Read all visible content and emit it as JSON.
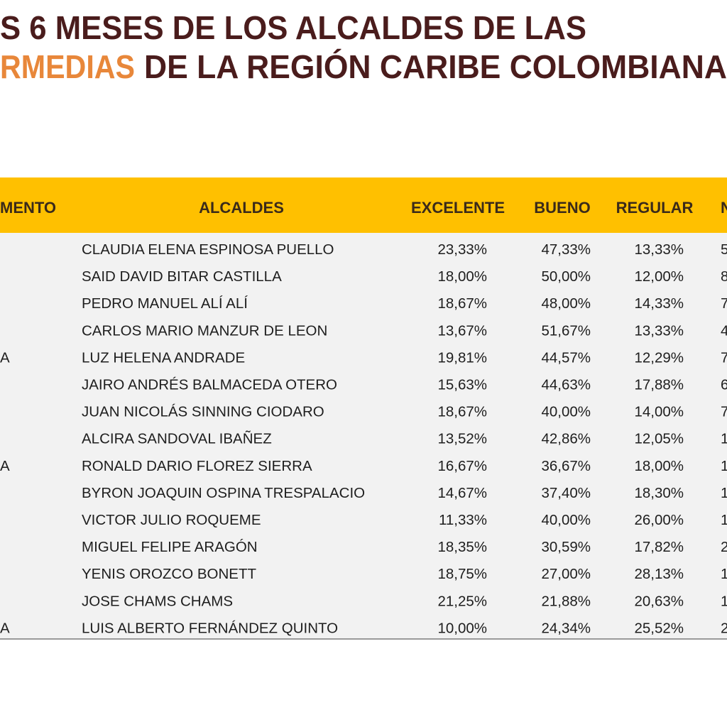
{
  "title": {
    "line1": "S 6 MESES DE LOS ALCALDES DE LAS",
    "line2_highlight": "RMEDIAS",
    "line2_rest": "DE LA REGIÓN CARIBE COLOMBIANA"
  },
  "table": {
    "headers": [
      "MENTO",
      "ALCALDES",
      "EXCELENTE",
      "BUENO",
      "REGULAR",
      "N"
    ],
    "rows": [
      [
        null,
        "CLAUDIA ELENA ESPINOSA PUELLO",
        "23,33%",
        "47,33%",
        "13,33%",
        "5"
      ],
      [
        null,
        "SAID DAVID BITAR CASTILLA",
        "18,00%",
        "50,00%",
        "12,00%",
        "8"
      ],
      [
        null,
        "PEDRO MANUEL ALÍ ALÍ",
        "18,67%",
        "48,00%",
        "14,33%",
        "7"
      ],
      [
        null,
        "CARLOS MARIO MANZUR DE LEON",
        "13,67%",
        "51,67%",
        "13,33%",
        "4"
      ],
      [
        "A",
        "LUZ HELENA ANDRADE",
        "19,81%",
        "44,57%",
        "12,29%",
        "7"
      ],
      [
        null,
        "JAIRO ANDRÉS BALMACEDA OTERO",
        "15,63%",
        "44,63%",
        "17,88%",
        "6"
      ],
      [
        null,
        "JUAN NICOLÁS SINNING CIODARO",
        "18,67%",
        "40,00%",
        "14,00%",
        "7"
      ],
      [
        null,
        "ALCIRA SANDOVAL IBAÑEZ",
        "13,52%",
        "42,86%",
        "12,05%",
        "1"
      ],
      [
        "A",
        "RONALD DARIO FLOREZ SIERRA",
        "16,67%",
        "36,67%",
        "18,00%",
        "1"
      ],
      [
        null,
        "BYRON JOAQUIN OSPINA TRESPALACIO",
        "14,67%",
        "37,40%",
        "18,30%",
        "1"
      ],
      [
        null,
        "VICTOR JULIO ROQUEME",
        "11,33%",
        "40,00%",
        "26,00%",
        "1"
      ],
      [
        null,
        "MIGUEL FELIPE ARAGÓN",
        "18,35%",
        "30,59%",
        "17,82%",
        "2"
      ],
      [
        null,
        "YENIS OROZCO BONETT",
        "18,75%",
        "27,00%",
        "28,13%",
        "1"
      ],
      [
        null,
        "JOSE CHAMS CHAMS",
        "21,25%",
        "21,88%",
        "20,63%",
        "1"
      ],
      [
        "A",
        "LUIS ALBERTO FERNÁNDEZ QUINTO",
        "10,00%",
        "24,34%",
        "25,52%",
        "2"
      ]
    ]
  }
}
